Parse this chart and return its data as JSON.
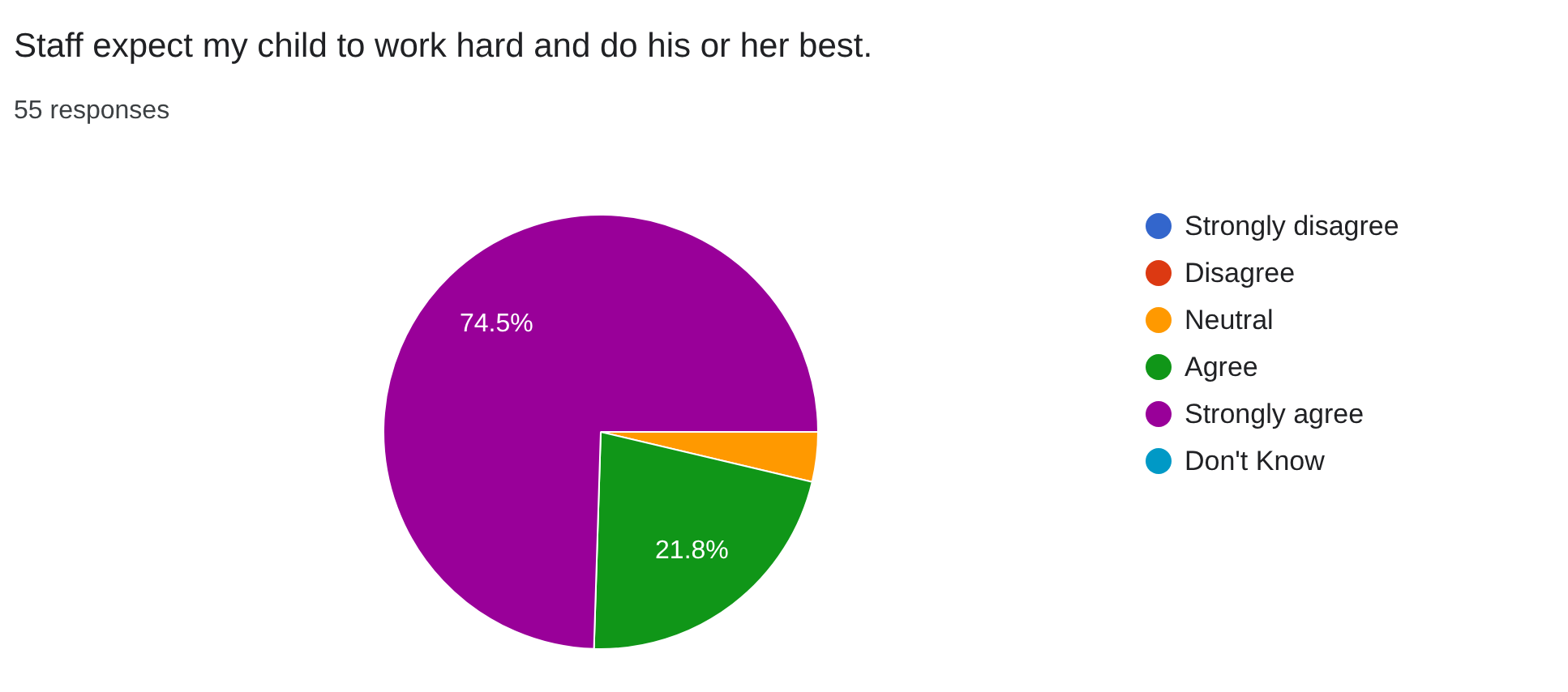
{
  "chart_data": {
    "type": "pie",
    "title": "Staff expect my child to work hard and do his or her best.",
    "subtitle": "55 responses",
    "categories": [
      "Strongly disagree",
      "Disagree",
      "Neutral",
      "Agree",
      "Strongly agree",
      "Don't Know"
    ],
    "values": [
      0,
      0,
      3.7,
      21.8,
      74.5,
      0
    ],
    "colors": [
      "#3366cc",
      "#dc3912",
      "#ff9900",
      "#109618",
      "#990099",
      "#0099c6"
    ],
    "value_labels": [
      null,
      null,
      null,
      "21.8%",
      "74.5%",
      null
    ],
    "legend": "right"
  }
}
